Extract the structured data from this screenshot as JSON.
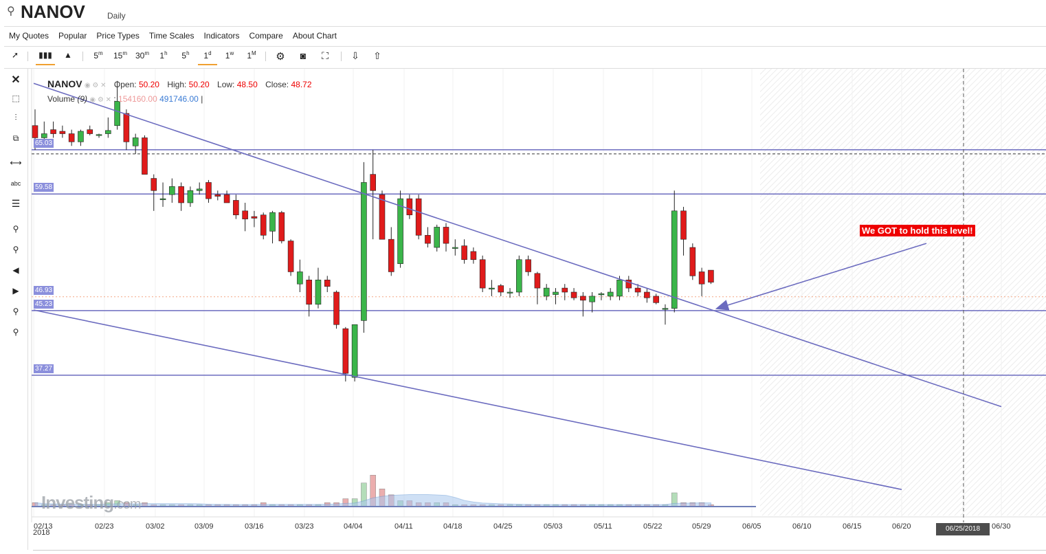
{
  "header": {
    "symbol": "NANOV",
    "interval": "Daily"
  },
  "menu": [
    "My Quotes",
    "Popular",
    "Price Types",
    "Time Scales",
    "Indicators",
    "Compare",
    "About Chart"
  ],
  "toolbar": {
    "timescales": [
      {
        "base": "5",
        "sup": "m"
      },
      {
        "base": "15",
        "sup": "m"
      },
      {
        "base": "30",
        "sup": "m"
      },
      {
        "base": "1",
        "sup": "h"
      },
      {
        "base": "5",
        "sup": "h"
      },
      {
        "base": "1",
        "sup": "d"
      },
      {
        "base": "1",
        "sup": "w"
      },
      {
        "base": "1",
        "sup": "M"
      }
    ],
    "active_timescale": "1d"
  },
  "left_tools": {
    "abc_label": "abc"
  },
  "legend": {
    "symbol": "NANOV",
    "open_label": "Open:",
    "open": "50.20",
    "high_label": "High:",
    "high": "50.20",
    "low_label": "Low:",
    "low": "48.50",
    "close_label": "Close:",
    "close": "48.72",
    "volume_label": "Volume",
    "volume_period": "(9)",
    "volume_value": "154160.00",
    "volume_ma": "491746.00"
  },
  "watermark": {
    "brand": "Investing",
    "suffix": ".com"
  },
  "annotation": {
    "text": "We GOT to hold this level!"
  },
  "colors": {
    "up": "#3bb54a",
    "down": "#e01b1b",
    "lines": "#6b6bbf",
    "price_tag": "#8b8fdc"
  },
  "chart_data": {
    "type": "candlestick",
    "y_axis": {
      "min": 20,
      "max": 75
    },
    "x_tick_labels": [
      "02/13",
      "02/23",
      "03/02",
      "03/09",
      "03/16",
      "03/23",
      "04/04",
      "04/11",
      "04/18",
      "04/25",
      "05/03",
      "05/11",
      "05/22",
      "05/29",
      "06/05",
      "06/10",
      "06/15",
      "06/20",
      "06/25/2018",
      "06/30"
    ],
    "year_label": "2018",
    "horizontal_levels": [
      65.03,
      59.58,
      46.93,
      45.23,
      37.27
    ],
    "level_labels": [
      "65.03",
      "59.58",
      "46.93",
      "45.23",
      "37.27"
    ],
    "resistance_level": 65.03,
    "last_close_line": 46.93,
    "trendlines": [
      {
        "from": [
          "02/13",
          73.2
        ],
        "to": [
          "06/30",
          33.4
        ]
      },
      {
        "from": [
          "02/13",
          45.3
        ],
        "to": [
          "06/20",
          23.2
        ]
      },
      {
        "from": [
          "06/22",
          53.5
        ],
        "to": [
          "05/31",
          45.5
        ],
        "arrow": true
      }
    ],
    "candles": [
      {
        "date": "02/13",
        "o": 68.0,
        "h": 70.0,
        "l": 65.0,
        "c": 66.5
      },
      {
        "date": "02/14",
        "o": 66.5,
        "h": 68.5,
        "l": 65.5,
        "c": 67.0
      },
      {
        "date": "02/15",
        "o": 67.5,
        "h": 68.5,
        "l": 66.5,
        "c": 67.0
      },
      {
        "date": "02/16",
        "o": 67.3,
        "h": 68.0,
        "l": 66.5,
        "c": 67.0
      },
      {
        "date": "02/20",
        "o": 67.0,
        "h": 67.5,
        "l": 65.5,
        "c": 66.0
      },
      {
        "date": "02/21",
        "o": 66.0,
        "h": 67.5,
        "l": 65.5,
        "c": 67.3
      },
      {
        "date": "02/22",
        "o": 67.5,
        "h": 68.0,
        "l": 66.8,
        "c": 67.0
      },
      {
        "date": "02/23",
        "o": 66.8,
        "h": 67.0,
        "l": 66.5,
        "c": 66.9
      },
      {
        "date": "02/26",
        "o": 67.0,
        "h": 69.0,
        "l": 66.5,
        "c": 67.4
      },
      {
        "date": "02/27",
        "o": 68.0,
        "h": 73.5,
        "l": 67.5,
        "c": 71.0
      },
      {
        "date": "02/28",
        "o": 69.5,
        "h": 70.0,
        "l": 65.0,
        "c": 66.0
      },
      {
        "date": "03/01",
        "o": 65.5,
        "h": 67.0,
        "l": 64.5,
        "c": 66.5
      },
      {
        "date": "03/02",
        "o": 66.5,
        "h": 66.8,
        "l": 62.0,
        "c": 62.0
      },
      {
        "date": "03/05",
        "o": 61.5,
        "h": 62.0,
        "l": 57.5,
        "c": 60.0
      },
      {
        "date": "03/06",
        "o": 59.0,
        "h": 61.0,
        "l": 58.0,
        "c": 59.0
      },
      {
        "date": "03/07",
        "o": 59.5,
        "h": 61.5,
        "l": 58.5,
        "c": 60.5
      },
      {
        "date": "03/08",
        "o": 60.5,
        "h": 61.0,
        "l": 57.5,
        "c": 58.5
      },
      {
        "date": "03/09",
        "o": 58.5,
        "h": 60.5,
        "l": 58.0,
        "c": 60.0
      },
      {
        "date": "03/12",
        "o": 60.0,
        "h": 61.0,
        "l": 59.5,
        "c": 60.2
      },
      {
        "date": "03/13",
        "o": 61.0,
        "h": 61.3,
        "l": 58.5,
        "c": 59.0
      },
      {
        "date": "03/14",
        "o": 59.5,
        "h": 60.0,
        "l": 58.8,
        "c": 59.3
      },
      {
        "date": "03/15",
        "o": 59.5,
        "h": 60.0,
        "l": 58.5,
        "c": 58.5
      },
      {
        "date": "03/16",
        "o": 58.8,
        "h": 59.5,
        "l": 56.5,
        "c": 57.0
      },
      {
        "date": "03/19",
        "o": 57.5,
        "h": 58.5,
        "l": 55.0,
        "c": 56.5
      },
      {
        "date": "03/20",
        "o": 56.8,
        "h": 57.5,
        "l": 55.5,
        "c": 56.6
      },
      {
        "date": "03/21",
        "o": 57.0,
        "h": 57.3,
        "l": 54.0,
        "c": 54.5
      },
      {
        "date": "03/22",
        "o": 55.0,
        "h": 57.5,
        "l": 53.5,
        "c": 57.3
      },
      {
        "date": "03/23",
        "o": 57.3,
        "h": 57.5,
        "l": 53.5,
        "c": 53.8
      },
      {
        "date": "03/26",
        "o": 53.8,
        "h": 54.0,
        "l": 49.5,
        "c": 50.0
      },
      {
        "date": "03/27",
        "o": 48.5,
        "h": 51.5,
        "l": 47.5,
        "c": 50.0
      },
      {
        "date": "03/28",
        "o": 49.0,
        "h": 49.5,
        "l": 44.5,
        "c": 46.0
      },
      {
        "date": "03/29",
        "o": 46.0,
        "h": 50.5,
        "l": 45.5,
        "c": 49.0
      },
      {
        "date": "03/30",
        "o": 49.0,
        "h": 49.5,
        "l": 47.5,
        "c": 48.2
      },
      {
        "date": "04/02",
        "o": 47.5,
        "h": 47.7,
        "l": 43.0,
        "c": 43.5
      },
      {
        "date": "04/03",
        "o": 43.0,
        "h": 43.2,
        "l": 36.5,
        "c": 37.5
      },
      {
        "date": "04/04",
        "o": 37.0,
        "h": 43.5,
        "l": 36.5,
        "c": 43.5
      },
      {
        "date": "04/05",
        "o": 44.0,
        "h": 63.5,
        "l": 42.5,
        "c": 61.0
      },
      {
        "date": "04/06",
        "o": 62.0,
        "h": 65.0,
        "l": 54.0,
        "c": 60.0
      },
      {
        "date": "04/09",
        "o": 59.5,
        "h": 60.0,
        "l": 54.0,
        "c": 54.0
      },
      {
        "date": "04/10",
        "o": 54.0,
        "h": 55.5,
        "l": 49.5,
        "c": 50.0
      },
      {
        "date": "04/11",
        "o": 51.0,
        "h": 60.0,
        "l": 50.5,
        "c": 59.0
      },
      {
        "date": "04/12",
        "o": 59.0,
        "h": 59.5,
        "l": 56.5,
        "c": 57.0
      },
      {
        "date": "04/13",
        "o": 59.0,
        "h": 59.5,
        "l": 54.0,
        "c": 54.5
      },
      {
        "date": "04/16",
        "o": 54.5,
        "h": 55.5,
        "l": 53.0,
        "c": 53.5
      },
      {
        "date": "04/17",
        "o": 53.0,
        "h": 55.8,
        "l": 52.5,
        "c": 55.5
      },
      {
        "date": "04/18",
        "o": 55.5,
        "h": 56.0,
        "l": 52.5,
        "c": 53.5
      },
      {
        "date": "04/19",
        "o": 53.0,
        "h": 54.0,
        "l": 52.0,
        "c": 53.0
      },
      {
        "date": "04/20",
        "o": 53.2,
        "h": 54.0,
        "l": 51.0,
        "c": 51.5
      },
      {
        "date": "04/23",
        "o": 52.5,
        "h": 53.0,
        "l": 51.0,
        "c": 51.5
      },
      {
        "date": "04/24",
        "o": 51.5,
        "h": 52.0,
        "l": 47.5,
        "c": 48.0
      },
      {
        "date": "04/25",
        "o": 48.0,
        "h": 49.0,
        "l": 47.0,
        "c": 48.0
      },
      {
        "date": "04/26",
        "o": 48.3,
        "h": 48.5,
        "l": 47.0,
        "c": 47.5
      },
      {
        "date": "04/27",
        "o": 47.5,
        "h": 48.0,
        "l": 46.8,
        "c": 47.5
      },
      {
        "date": "04/30",
        "o": 47.5,
        "h": 52.0,
        "l": 47.0,
        "c": 51.5
      },
      {
        "date": "05/01",
        "o": 51.5,
        "h": 52.0,
        "l": 49.5,
        "c": 50.0
      },
      {
        "date": "05/02",
        "o": 49.8,
        "h": 50.0,
        "l": 46.0,
        "c": 48.0
      },
      {
        "date": "05/03",
        "o": 47.0,
        "h": 48.5,
        "l": 46.5,
        "c": 48.0
      },
      {
        "date": "05/04",
        "o": 47.2,
        "h": 48.0,
        "l": 46.0,
        "c": 47.5
      },
      {
        "date": "05/07",
        "o": 48.0,
        "h": 48.5,
        "l": 46.5,
        "c": 47.5
      },
      {
        "date": "05/08",
        "o": 47.5,
        "h": 48.0,
        "l": 46.5,
        "c": 46.8
      },
      {
        "date": "05/09",
        "o": 47.0,
        "h": 47.5,
        "l": 44.5,
        "c": 46.5
      },
      {
        "date": "05/10",
        "o": 46.3,
        "h": 47.5,
        "l": 45.0,
        "c": 47.0
      },
      {
        "date": "05/11",
        "o": 47.2,
        "h": 47.5,
        "l": 46.5,
        "c": 47.3
      },
      {
        "date": "05/14",
        "o": 47.0,
        "h": 48.0,
        "l": 46.5,
        "c": 47.5
      },
      {
        "date": "05/15",
        "o": 47.0,
        "h": 49.5,
        "l": 46.5,
        "c": 49.0
      },
      {
        "date": "05/16",
        "o": 49.0,
        "h": 49.5,
        "l": 47.5,
        "c": 48.0
      },
      {
        "date": "05/17",
        "o": 48.0,
        "h": 48.5,
        "l": 47.0,
        "c": 47.5
      },
      {
        "date": "05/18",
        "o": 47.5,
        "h": 48.0,
        "l": 46.2,
        "c": 46.8
      },
      {
        "date": "05/21",
        "o": 47.0,
        "h": 47.3,
        "l": 46.0,
        "c": 46.2
      },
      {
        "date": "05/22",
        "o": 45.5,
        "h": 46.0,
        "l": 43.5,
        "c": 45.5
      },
      {
        "date": "05/23",
        "o": 45.5,
        "h": 60.0,
        "l": 45.0,
        "c": 57.5
      },
      {
        "date": "05/24",
        "o": 57.5,
        "h": 58.0,
        "l": 52.0,
        "c": 54.0
      },
      {
        "date": "05/25",
        "o": 53.0,
        "h": 53.5,
        "l": 49.0,
        "c": 49.5
      },
      {
        "date": "05/29",
        "o": 50.0,
        "h": 50.5,
        "l": 47.0,
        "c": 48.5
      },
      {
        "date": "05/30",
        "o": 50.2,
        "h": 50.2,
        "l": 48.5,
        "c": 48.72
      }
    ],
    "volume": [
      2,
      1,
      1,
      1,
      1,
      1,
      1,
      1,
      2,
      3,
      2,
      1,
      2,
      1,
      1,
      1,
      1,
      1,
      1,
      1,
      1,
      1,
      1,
      1,
      1,
      2,
      1,
      1,
      1,
      1,
      1,
      1,
      2,
      2,
      4,
      4,
      12,
      16,
      9,
      6,
      3,
      3,
      2,
      2,
      2,
      2,
      1,
      1,
      1,
      1,
      1,
      1,
      1,
      1,
      1,
      1,
      1,
      1,
      1,
      1,
      1,
      1,
      1,
      1,
      1,
      1,
      1,
      1,
      1,
      1,
      7,
      2,
      2,
      2,
      1
    ]
  }
}
